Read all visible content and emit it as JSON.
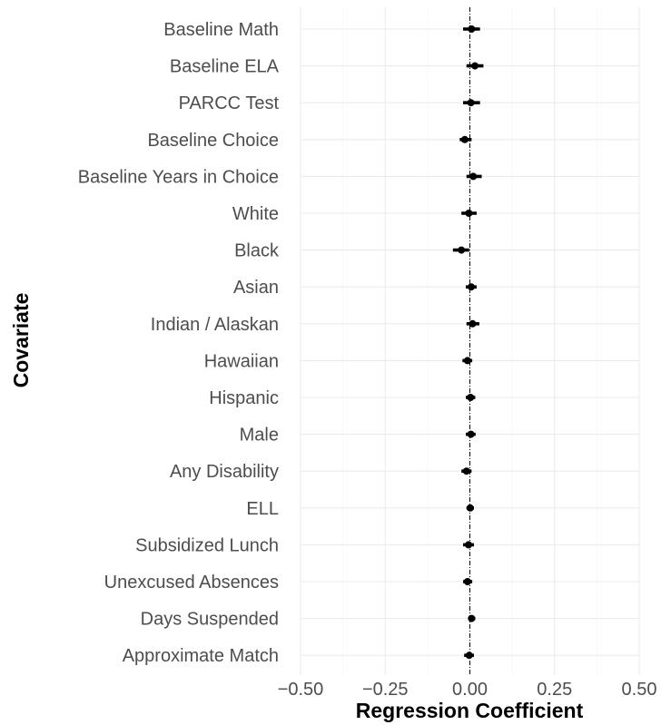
{
  "chart_data": {
    "type": "forest",
    "xlabel": "Regression Coefficient",
    "ylabel": "Covariate",
    "xlim": [
      -0.5,
      0.5
    ],
    "x_ticks": [
      -0.5,
      -0.25,
      0.0,
      0.25,
      0.5
    ],
    "x_tick_labels": [
      "−0.50",
      "−0.25",
      "0.00",
      "0.25",
      "0.50"
    ],
    "reference_line": 0,
    "grid": true,
    "series": [
      {
        "points": [
          {
            "label": "Baseline Math",
            "estimate": 0.005,
            "lower": -0.02,
            "upper": 0.03
          },
          {
            "label": "Baseline ELA",
            "estimate": 0.015,
            "lower": -0.01,
            "upper": 0.04
          },
          {
            "label": "PARCC Test",
            "estimate": 0.003,
            "lower": -0.02,
            "upper": 0.03
          },
          {
            "label": "Baseline Choice",
            "estimate": -0.015,
            "lower": -0.03,
            "upper": 0.005
          },
          {
            "label": "Baseline Years in Choice",
            "estimate": 0.01,
            "lower": -0.01,
            "upper": 0.035
          },
          {
            "label": "White",
            "estimate": -0.003,
            "lower": -0.025,
            "upper": 0.02
          },
          {
            "label": "Black",
            "estimate": -0.025,
            "lower": -0.05,
            "upper": -0.002
          },
          {
            "label": "Asian",
            "estimate": 0.004,
            "lower": -0.012,
            "upper": 0.02
          },
          {
            "label": "Indian / Alaskan",
            "estimate": 0.008,
            "lower": -0.01,
            "upper": 0.028
          },
          {
            "label": "Hawaiian",
            "estimate": -0.007,
            "lower": -0.022,
            "upper": 0.007
          },
          {
            "label": "Hispanic",
            "estimate": 0.002,
            "lower": -0.012,
            "upper": 0.016
          },
          {
            "label": "Male",
            "estimate": 0.003,
            "lower": -0.012,
            "upper": 0.017
          },
          {
            "label": "Any Disability",
            "estimate": -0.01,
            "lower": -0.025,
            "upper": 0.005
          },
          {
            "label": "ELL",
            "estimate": 0.001,
            "lower": -0.01,
            "upper": 0.012
          },
          {
            "label": "Subsidized Lunch",
            "estimate": -0.004,
            "lower": -0.02,
            "upper": 0.012
          },
          {
            "label": "Unexcused Absences",
            "estimate": -0.007,
            "lower": -0.02,
            "upper": 0.007
          },
          {
            "label": "Days Suspended",
            "estimate": 0.005,
            "lower": -0.005,
            "upper": 0.016
          },
          {
            "label": "Approximate Match",
            "estimate": -0.002,
            "lower": -0.017,
            "upper": 0.012
          }
        ]
      }
    ],
    "colors": {
      "points": "#000000",
      "reference_line": "#000000"
    }
  }
}
